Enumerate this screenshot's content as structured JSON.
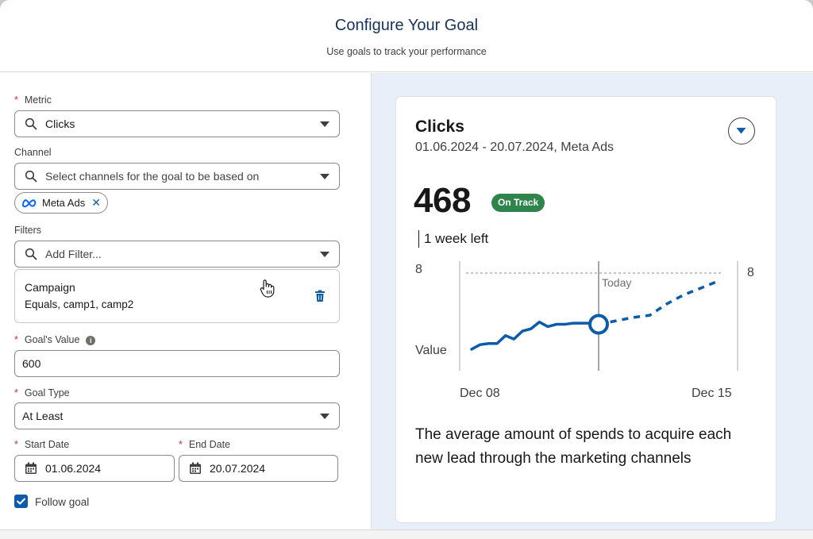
{
  "header": {
    "title": "Configure Your Goal",
    "subtitle": "Use goals to track your performance"
  },
  "form": {
    "required_mark": "*",
    "metric": {
      "label": "Metric",
      "value": "Clicks"
    },
    "channel": {
      "label": "Channel",
      "placeholder": "Select channels for the goal to be based on",
      "selected": [
        {
          "label": "Meta Ads",
          "icon": "meta-logo-icon"
        }
      ]
    },
    "filters": {
      "label": "Filters",
      "placeholder": "Add Filter...",
      "items": [
        {
          "name": "Campaign",
          "condition": "Equals, camp1, camp2"
        }
      ]
    },
    "goal_value": {
      "label": "Goal's Value",
      "value": "600"
    },
    "goal_type": {
      "label": "Goal Type",
      "value": "At Least"
    },
    "start_date": {
      "label": "Start Date",
      "value": "01.06.2024"
    },
    "end_date": {
      "label": "End Date",
      "value": "20.07.2024"
    },
    "follow_goal": {
      "label": "Follow goal",
      "checked": true
    }
  },
  "preview": {
    "title": "Clicks",
    "dates": "01.06.2024 - 20.07.2024, Meta Ads",
    "value": "468",
    "status": "On Track",
    "time_left": "1 week left",
    "description": "The average amount of spends to acquire each new lead through the marketing channels"
  },
  "chart_data": {
    "type": "line",
    "y_top_label_left": "8",
    "y_top_label_right": "8",
    "y_label": "Value",
    "today_label": "Today",
    "x_labels": [
      "Dec 08",
      "Dec 15"
    ],
    "actual": [
      1.2,
      1.6,
      1.7,
      1.7,
      2.4,
      2.1,
      2.8,
      3.0,
      3.6,
      3.2,
      3.4,
      3.4,
      3.5,
      3.5,
      3.5,
      3.4
    ],
    "projected": [
      3.4,
      3.7,
      4.0,
      4.2,
      5.2,
      6.0,
      6.6,
      7.2
    ],
    "goal": 8,
    "colors": {
      "line": "#0b5cab",
      "status": "#2e844a"
    }
  }
}
